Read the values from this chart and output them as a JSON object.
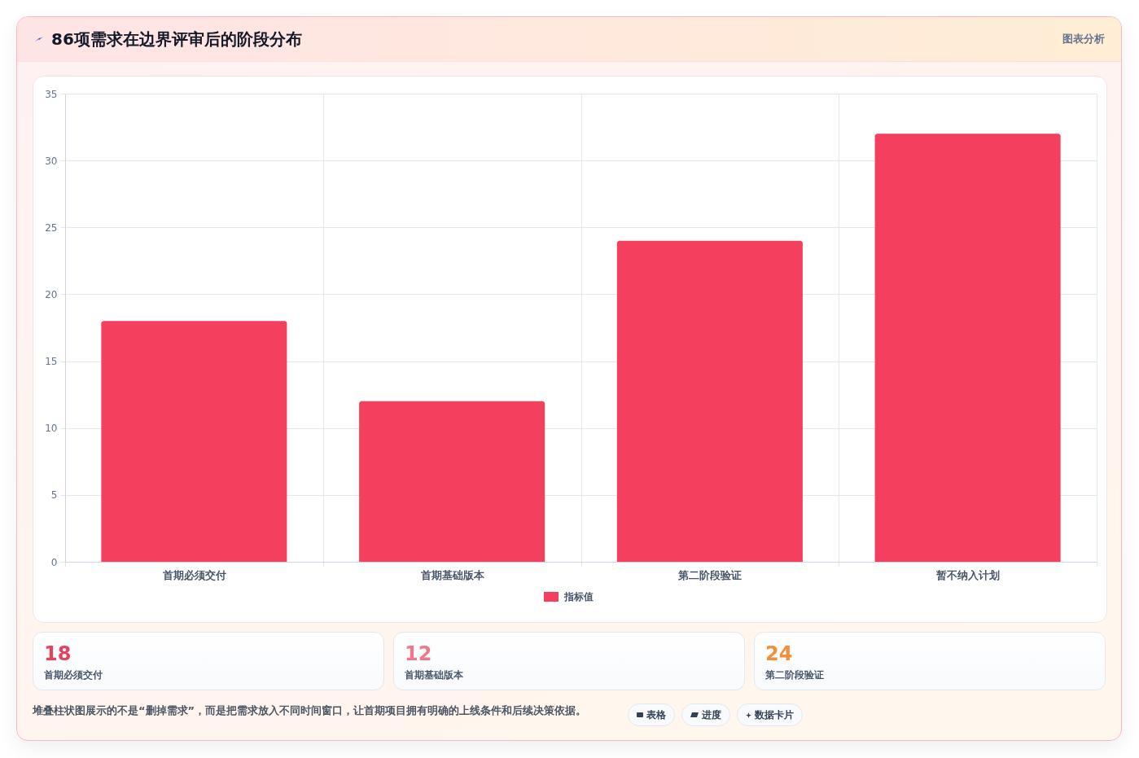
{
  "chart_data": [
    {
      "type": "bar",
      "title": "86项需求在边界评审后的阶段分布",
      "categories": [
        "首期必须交付",
        "首期基础版本",
        "第二阶段验证",
        "暂不纳入计划"
      ],
      "series": [
        {
          "name": "指标值",
          "color": "#f43f5e",
          "values": [
            18,
            12,
            24,
            32
          ]
        }
      ],
      "ylim": [
        0,
        35
      ],
      "yticks": [
        0,
        5,
        10,
        15,
        20,
        25,
        30,
        35
      ],
      "grid": true,
      "legend": "bottom",
      "annotations": [
        "图表分析",
        "堆叠柱状图展示的不是“删掉需求”，而是把需求放入不同时间窗口，让首期项目拥有明确的上线条件和后续决策依据。",
        "表格",
        "进度",
        "数据卡片"
      ]
    },
    {
      "type": "other",
      "annotations": [
        "18",
        "首期必须交付",
        "12",
        "首期基础版本",
        "24",
        "第二阶段验证"
      ]
    }
  ]
}
